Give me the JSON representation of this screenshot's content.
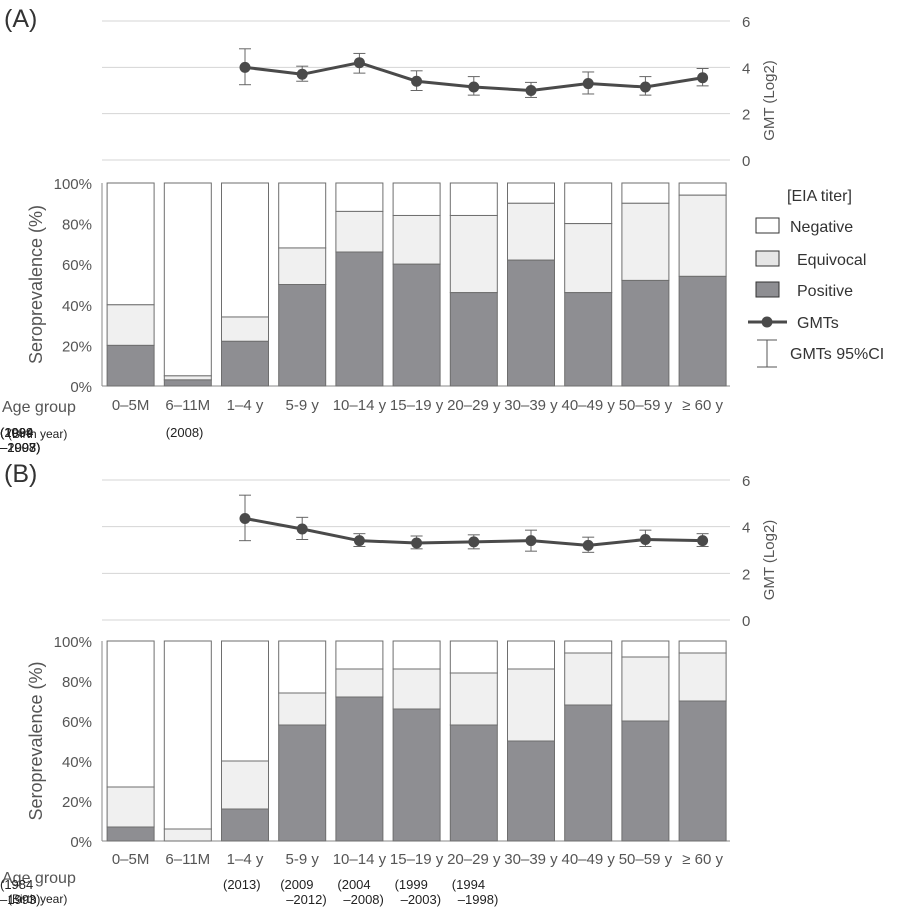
{
  "colors": {
    "positive": "#8e8e92",
    "equivocal": "#f0f0f0",
    "negative": "#ffffff",
    "bar_stroke": "#6e6e6e",
    "gmt_line": "#4a4a4a",
    "grid": "#d4d4d4"
  },
  "age_groups": [
    "0–5M",
    "6–11M",
    "1–4 y",
    "5-9 y",
    "10–14 y",
    "15–19 y",
    "20–29 y",
    "30–39 y",
    "40–49 y",
    "50–59 y",
    "≥ 60 y"
  ],
  "row_labels": {
    "age_group": "Age group",
    "birth_year": "(Birth year)"
  },
  "legend": {
    "title": "[EIA titer]",
    "negative": "Negative",
    "equivocal": "Equivocal",
    "positive": "Positive",
    "gmts": "GMTs",
    "gmts_ci": "GMTs  95%CI"
  },
  "chart_data": [
    {
      "panel": "(A)",
      "type": "bar",
      "stacked": true,
      "ylabel": "Seroprevalence (%)",
      "ylim": [
        0,
        100
      ],
      "yticks": [
        "0%",
        "20%",
        "40%",
        "60%",
        "80%",
        "100%"
      ],
      "categories": [
        "0–5M",
        "6–11M",
        "1–4 y",
        "5-9 y",
        "10–14 y",
        "15–19 y",
        "20–29 y",
        "30–39 y",
        "40–49 y",
        "50–59 y",
        "≥ 60 y"
      ],
      "birth_years": [
        [
          "(2008)"
        ],
        [
          "(2004",
          "–2007)"
        ],
        [
          "(1999",
          "–2003)"
        ],
        [
          "(1994",
          "–1998)"
        ],
        [
          "(1989",
          "–1993)"
        ]
      ],
      "series": [
        {
          "name": "Positive",
          "values": [
            20,
            3,
            22,
            50,
            66,
            60,
            46,
            62,
            46,
            52,
            54
          ]
        },
        {
          "name": "Equivocal",
          "values": [
            20,
            2,
            12,
            18,
            20,
            24,
            38,
            28,
            34,
            38,
            40
          ]
        },
        {
          "name": "Negative",
          "values": [
            60,
            95,
            66,
            32,
            14,
            16,
            16,
            10,
            20,
            10,
            6
          ]
        }
      ],
      "gmt": {
        "ylabel": "GMT  (Log2)",
        "ylim": [
          0,
          6
        ],
        "yticks": [
          "0",
          "2",
          "4",
          "6"
        ],
        "values": [
          null,
          null,
          4.0,
          3.7,
          4.2,
          3.4,
          3.15,
          3.0,
          3.3,
          3.15,
          3.55
        ],
        "ci_low": [
          null,
          null,
          3.25,
          3.4,
          3.75,
          3.0,
          2.8,
          2.7,
          2.85,
          2.8,
          3.2
        ],
        "ci_high": [
          null,
          null,
          4.8,
          4.05,
          4.6,
          3.85,
          3.6,
          3.35,
          3.8,
          3.6,
          3.95
        ]
      }
    },
    {
      "panel": "(B)",
      "type": "bar",
      "stacked": true,
      "ylabel": "Seroprevalence (%)",
      "ylim": [
        0,
        100
      ],
      "yticks": [
        "0%",
        "20%",
        "40%",
        "60%",
        "80%",
        "100%"
      ],
      "categories": [
        "0–5M",
        "6–11M",
        "1–4 y",
        "5-9 y",
        "10–14 y",
        "15–19 y",
        "20–29 y",
        "30–39 y",
        "40–49 y",
        "50–59 y",
        "≥ 60 y"
      ],
      "birth_years": [
        [
          "(2013)"
        ],
        [
          "(2009",
          "–2012)"
        ],
        [
          "(2004",
          "–2008)"
        ],
        [
          "(1999",
          "–2003)"
        ],
        [
          "(1994",
          "–1998)"
        ],
        [
          "(1984",
          "–1993)"
        ]
      ],
      "series": [
        {
          "name": "Positive",
          "values": [
            7,
            0,
            16,
            58,
            72,
            66,
            58,
            50,
            68,
            60,
            70
          ]
        },
        {
          "name": "Equivocal",
          "values": [
            20,
            6,
            24,
            16,
            14,
            20,
            26,
            36,
            26,
            32,
            24
          ]
        },
        {
          "name": "Negative",
          "values": [
            73,
            94,
            60,
            26,
            14,
            14,
            16,
            14,
            6,
            8,
            6
          ]
        }
      ],
      "gmt": {
        "ylabel": "GMT  (Log2)",
        "ylim": [
          0,
          6
        ],
        "yticks": [
          "0",
          "2",
          "4",
          "6"
        ],
        "values": [
          null,
          null,
          4.35,
          3.9,
          3.4,
          3.3,
          3.35,
          3.4,
          3.2,
          3.45,
          3.4
        ],
        "ci_low": [
          null,
          null,
          3.4,
          3.45,
          3.15,
          3.05,
          3.05,
          2.95,
          2.9,
          3.15,
          3.15
        ],
        "ci_high": [
          null,
          null,
          5.35,
          4.4,
          3.7,
          3.6,
          3.65,
          3.85,
          3.55,
          3.85,
          3.7
        ]
      }
    }
  ]
}
